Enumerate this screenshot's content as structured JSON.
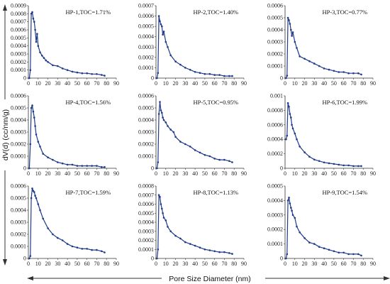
{
  "figure": {
    "ylabel": "dV(d) (cc/nm/g)",
    "xlabel": "Pore Size Diameter (nm)"
  },
  "colors": {
    "series": "#1f3a8a",
    "axis": "#333333"
  },
  "chart_data": [
    {
      "type": "line",
      "title": "HP-1,TOC=1.71%",
      "ylim": [
        0,
        0.0009
      ],
      "xlim": [
        0,
        90
      ],
      "x": [
        1,
        2,
        3,
        4,
        5,
        6,
        7,
        8,
        9,
        10,
        12,
        14,
        16,
        18,
        20,
        25,
        30,
        35,
        40,
        45,
        50,
        55,
        60,
        65,
        70,
        75,
        78
      ],
      "values": [
        0,
        0.0001,
        0.0008,
        0.00082,
        0.00074,
        0.0007,
        0.0006,
        0.00045,
        0.00055,
        0.0004,
        0.00032,
        0.00028,
        0.00025,
        0.00022,
        0.0002,
        0.00016,
        0.00015,
        0.00012,
        0.0001,
        8e-05,
        7e-05,
        6e-05,
        6e-05,
        5e-05,
        5e-05,
        4e-05,
        3e-05
      ]
    },
    {
      "type": "line",
      "title": "HP-2,TOC=1.40%",
      "ylim": [
        0,
        0.0007
      ],
      "xlim": [
        0,
        90
      ],
      "x": [
        1,
        2,
        3,
        4,
        5,
        6,
        7,
        8,
        10,
        12,
        15,
        20,
        25,
        30,
        35,
        40,
        45,
        50,
        55,
        60,
        65,
        70,
        75,
        78
      ],
      "values": [
        0,
        5e-05,
        0.0006,
        0.00055,
        0.00052,
        0.0005,
        0.00042,
        0.00045,
        0.00035,
        0.0003,
        0.00022,
        0.00016,
        0.00013,
        0.0001,
        8e-05,
        6e-05,
        5e-05,
        4e-05,
        4e-05,
        3e-05,
        3e-05,
        2e-05,
        2e-05,
        2e-05
      ]
    },
    {
      "type": "line",
      "title": "HP-3,TOC=0.77%",
      "ylim": [
        0,
        0.0006
      ],
      "xlim": [
        0,
        90
      ],
      "x": [
        1,
        2,
        3,
        4,
        5,
        6,
        7,
        8,
        10,
        12,
        15,
        20,
        25,
        30,
        35,
        40,
        45,
        50,
        55,
        60,
        65,
        70,
        75,
        78
      ],
      "values": [
        0,
        2e-05,
        0.0005,
        0.00048,
        0.00045,
        0.0004,
        0.00035,
        0.00038,
        0.0003,
        0.00025,
        0.00018,
        0.00016,
        0.00014,
        0.00012,
        0.0001,
        8e-05,
        7e-05,
        6e-05,
        5e-05,
        5e-05,
        4e-05,
        4e-05,
        4e-05,
        3e-05
      ]
    },
    {
      "type": "line",
      "title": "HP-4,TOC=1.56%",
      "ylim": [
        0,
        0.0006
      ],
      "xlim": [
        0,
        90
      ],
      "x": [
        1,
        2,
        3,
        4,
        5,
        6,
        7,
        8,
        10,
        12,
        15,
        20,
        25,
        30,
        35,
        40,
        45,
        50,
        55,
        60,
        65,
        70,
        75,
        78
      ],
      "values": [
        0,
        0.0002,
        0.0005,
        0.00052,
        0.00047,
        0.00042,
        0.00035,
        0.00028,
        0.00022,
        0.00018,
        0.00012,
        9e-05,
        7e-05,
        5e-05,
        4e-05,
        3e-05,
        3e-05,
        2e-05,
        2e-05,
        2e-05,
        2e-05,
        2e-05,
        1e-05,
        1e-05
      ]
    },
    {
      "type": "line",
      "title": "HP-5,TOC=0.95%",
      "ylim": [
        0,
        0.0006
      ],
      "xlim": [
        0,
        90
      ],
      "x": [
        1,
        2,
        3,
        4,
        5,
        6,
        7,
        8,
        10,
        12,
        15,
        18,
        20,
        25,
        30,
        35,
        40,
        45,
        50,
        55,
        60,
        65,
        70,
        75,
        78
      ],
      "values": [
        0,
        5e-05,
        0.00045,
        0.00055,
        0.00048,
        0.00046,
        0.00042,
        0.0004,
        0.00038,
        0.00035,
        0.00032,
        0.0003,
        0.00026,
        0.00022,
        0.0002,
        0.00018,
        0.00015,
        0.00013,
        0.00011,
        0.0001,
        8e-05,
        7e-05,
        7e-05,
        6e-05,
        5e-05
      ]
    },
    {
      "type": "line",
      "title": "HP-6,TOC=1.99%",
      "ylim": [
        0,
        0.001
      ],
      "xlim": [
        0,
        90
      ],
      "x": [
        1,
        2,
        3,
        4,
        5,
        6,
        7,
        8,
        10,
        12,
        15,
        20,
        25,
        30,
        35,
        40,
        45,
        50,
        55,
        60,
        65,
        70,
        75,
        78
      ],
      "values": [
        0.0004,
        0.00045,
        0.0009,
        0.00085,
        0.00075,
        0.0007,
        0.0006,
        0.00055,
        0.00048,
        0.0004,
        0.0003,
        0.00022,
        0.00016,
        0.00012,
        0.0001,
        8e-05,
        7e-05,
        6e-05,
        5e-05,
        4e-05,
        4e-05,
        3e-05,
        3e-05,
        3e-05
      ]
    },
    {
      "type": "line",
      "title": "HP-7,TOC=1.59%",
      "ylim": [
        0,
        0.0006
      ],
      "xlim": [
        0,
        90
      ],
      "x": [
        1,
        2,
        3,
        4,
        5,
        6,
        7,
        8,
        10,
        12,
        15,
        20,
        25,
        30,
        35,
        40,
        45,
        50,
        55,
        60,
        65,
        70,
        75,
        78
      ],
      "values": [
        0,
        2e-05,
        0.0005,
        0.00058,
        0.00056,
        0.00055,
        0.00052,
        0.0005,
        0.00045,
        0.0004,
        0.00033,
        0.00025,
        0.0002,
        0.00017,
        0.00015,
        0.00012,
        0.0001,
        9e-05,
        8e-05,
        8e-05,
        7e-05,
        7e-05,
        6e-05,
        5e-05
      ]
    },
    {
      "type": "line",
      "title": "HP-8,TOC=1.13%",
      "ylim": [
        0,
        0.0008
      ],
      "xlim": [
        0,
        90
      ],
      "x": [
        1,
        2,
        3,
        4,
        5,
        6,
        7,
        8,
        10,
        12,
        15,
        20,
        25,
        30,
        35,
        40,
        45,
        50,
        55,
        60,
        65,
        70,
        75,
        78
      ],
      "values": [
        0,
        0.0001,
        0.0007,
        0.00068,
        0.0006,
        0.00055,
        0.0005,
        0.00045,
        0.00042,
        0.00035,
        0.0003,
        0.00025,
        0.00022,
        0.00018,
        0.00016,
        0.00014,
        0.00012,
        0.0001,
        9e-05,
        8e-05,
        7e-05,
        7e-05,
        6e-05,
        5e-05
      ]
    },
    {
      "type": "line",
      "title": "HP-9,TOC=1.54%",
      "ylim": [
        0,
        0.0005
      ],
      "xlim": [
        0,
        90
      ],
      "x": [
        1,
        2,
        3,
        4,
        5,
        6,
        7,
        8,
        10,
        12,
        15,
        20,
        25,
        30,
        35,
        40,
        45,
        50,
        55,
        60,
        65,
        70,
        75,
        78
      ],
      "values": [
        0,
        3e-05,
        0.0004,
        0.00042,
        0.00038,
        0.00035,
        0.00033,
        0.0003,
        0.00028,
        0.00022,
        0.00018,
        0.00014,
        0.00011,
        0.0001,
        8e-05,
        7e-05,
        6e-05,
        5e-05,
        4e-05,
        4e-05,
        3e-05,
        3e-05,
        3e-05,
        2e-05
      ]
    }
  ]
}
